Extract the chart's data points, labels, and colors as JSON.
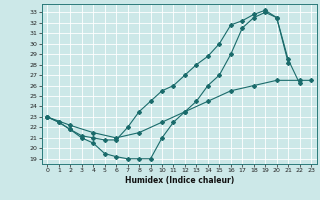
{
  "xlabel": "Humidex (Indice chaleur)",
  "bg_color": "#cce8e8",
  "grid_color": "#ffffff",
  "line_color": "#1a6b6b",
  "xlim": [
    -0.5,
    23.5
  ],
  "ylim": [
    18.5,
    33.8
  ],
  "yticks": [
    19,
    20,
    21,
    22,
    23,
    24,
    25,
    26,
    27,
    28,
    29,
    30,
    31,
    32,
    33
  ],
  "xticks": [
    0,
    1,
    2,
    3,
    4,
    5,
    6,
    7,
    8,
    9,
    10,
    11,
    12,
    13,
    14,
    15,
    16,
    17,
    18,
    19,
    20,
    21,
    22,
    23
  ],
  "curve_up_x": [
    0,
    1,
    2,
    3,
    4,
    5,
    6,
    7,
    8,
    9,
    10,
    11,
    12,
    13,
    14,
    15,
    16,
    17,
    18,
    19,
    20,
    21,
    22
  ],
  "curve_up_y": [
    23.0,
    22.5,
    21.8,
    21.2,
    21.0,
    20.8,
    20.8,
    22.0,
    23.5,
    24.5,
    25.5,
    26.0,
    27.0,
    28.0,
    28.8,
    30.0,
    31.8,
    32.2,
    32.8,
    33.2,
    32.5,
    28.5,
    26.2
  ],
  "curve_down_x": [
    0,
    1,
    2,
    3,
    4,
    5,
    6,
    7,
    8,
    9,
    10,
    11,
    12,
    13,
    14,
    15,
    16,
    17,
    18,
    19,
    20,
    21
  ],
  "curve_down_y": [
    23.0,
    22.5,
    21.8,
    21.0,
    20.5,
    19.5,
    19.2,
    19.0,
    19.0,
    19.0,
    21.0,
    22.5,
    23.5,
    24.5,
    26.0,
    27.0,
    29.0,
    31.5,
    32.5,
    33.0,
    32.5,
    28.2
  ],
  "curve_diag_x": [
    0,
    2,
    4,
    6,
    8,
    10,
    12,
    14,
    16,
    18,
    20,
    22,
    23
  ],
  "curve_diag_y": [
    23.0,
    22.2,
    21.5,
    21.0,
    21.5,
    22.5,
    23.5,
    24.5,
    25.5,
    26.0,
    26.5,
    26.5,
    26.5
  ]
}
